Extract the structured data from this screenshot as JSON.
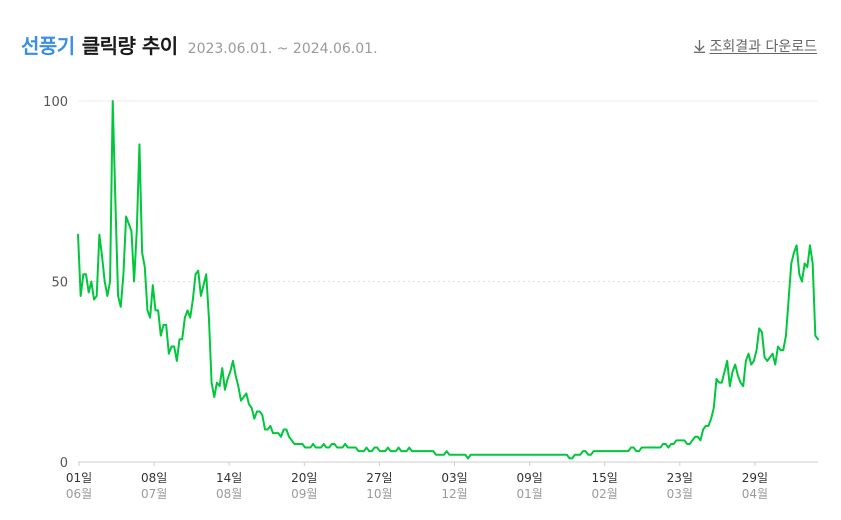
{
  "header": {
    "title_keyword": "선풍기",
    "title_rest": "클릭량 추이",
    "period": "2023.06.01. ~ 2024.06.01.",
    "download_label": "조회결과 다운로드",
    "download_icon": "download-arrow-icon"
  },
  "colors": {
    "line": "#00c73c",
    "keyword": "#3a8ee6",
    "grid": "#e8e8e8"
  },
  "chart_data": {
    "type": "line",
    "title": "",
    "xlabel": "",
    "ylabel": "",
    "ylim": [
      0,
      100
    ],
    "yticks": [
      "0",
      "50",
      "100"
    ],
    "grid": "horizontal",
    "xticks": [
      {
        "day": "01일",
        "month": "06월"
      },
      {
        "day": "08일",
        "month": "07월"
      },
      {
        "day": "14일",
        "month": "08월"
      },
      {
        "day": "20일",
        "month": "09월"
      },
      {
        "day": "27일",
        "month": "10월"
      },
      {
        "day": "03일",
        "month": "12월"
      },
      {
        "day": "09일",
        "month": "01월"
      },
      {
        "day": "15일",
        "month": "02월"
      },
      {
        "day": "23일",
        "month": "03월"
      },
      {
        "day": "29일",
        "month": "04월"
      }
    ],
    "x_range": [
      "2023-06-01",
      "2024-06-01"
    ],
    "series": [
      {
        "values": [
          63,
          46,
          52,
          52,
          47,
          50,
          45,
          46,
          63,
          57,
          50,
          46,
          50,
          100,
          72,
          46,
          43,
          52,
          68,
          66,
          64,
          50,
          64,
          88,
          58,
          54,
          42,
          40,
          49,
          42,
          42,
          35,
          38,
          38,
          30,
          32,
          32,
          28,
          34,
          34,
          40,
          42,
          40,
          45,
          52,
          53,
          46,
          49,
          52,
          40,
          22,
          18,
          22,
          21,
          26,
          20,
          23,
          25,
          28,
          24,
          21,
          17,
          18,
          19,
          16,
          15,
          12,
          14,
          14,
          13,
          9,
          9,
          10,
          8,
          8,
          8,
          7,
          9,
          9,
          7,
          6,
          5,
          5,
          5,
          5,
          4,
          4,
          4,
          5,
          4,
          4,
          4,
          5,
          4,
          4,
          5,
          5,
          4,
          4,
          4,
          5,
          4,
          4,
          4,
          4,
          3,
          3,
          3,
          4,
          3,
          3,
          4,
          4,
          3,
          3,
          3,
          4,
          3,
          3,
          3,
          4,
          3,
          3,
          3,
          4,
          3,
          3,
          3,
          3,
          3,
          3,
          3,
          3,
          3,
          2,
          2,
          2,
          2,
          3,
          2,
          2,
          2,
          2,
          2,
          2,
          2,
          1,
          2,
          2,
          2,
          2,
          2,
          2,
          2,
          2,
          2,
          2,
          2,
          2,
          2,
          2,
          2,
          2,
          2,
          2,
          2,
          2,
          2,
          2,
          2,
          2,
          2,
          2,
          2,
          2,
          2,
          2,
          2,
          2,
          2,
          2,
          2,
          2,
          2,
          1,
          1,
          2,
          2,
          2,
          3,
          3,
          2,
          2,
          3,
          3,
          3,
          3,
          3,
          3,
          3,
          3,
          3,
          3,
          3,
          3,
          3,
          3,
          4,
          4,
          3,
          3,
          4,
          4,
          4,
          4,
          4,
          4,
          4,
          4,
          5,
          5,
          4,
          5,
          5,
          6,
          6,
          6,
          6,
          5,
          5,
          6,
          7,
          7,
          6,
          9,
          10,
          10,
          12,
          15,
          23,
          22,
          22,
          25,
          28,
          21,
          25,
          27,
          24,
          22,
          21,
          28,
          30,
          27,
          28,
          31,
          37,
          36,
          29,
          28,
          29,
          30,
          27,
          32,
          31,
          31,
          35,
          45,
          55,
          58,
          60,
          52,
          50,
          55,
          54,
          60,
          55,
          35,
          34
        ]
      }
    ]
  }
}
